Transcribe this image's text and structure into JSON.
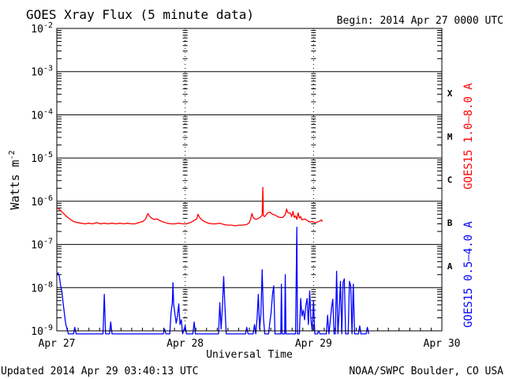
{
  "chart_data": {
    "type": "line",
    "title": "GOES Xray Flux (5 minute data)",
    "begin_label": "Begin:  2014 Apr 27 0000 UTC",
    "ylabel_main": "Watts m",
    "ylabel_sup": "-2",
    "xlabel": "Universal Time",
    "y_scale": "log",
    "ylim": [
      1e-09,
      0.01
    ],
    "y_ticks": [
      {
        "exp": "-2",
        "value": 0.01
      },
      {
        "exp": "-3",
        "value": 0.001
      },
      {
        "exp": "-4",
        "value": 0.0001
      },
      {
        "exp": "-5",
        "value": 1e-05
      },
      {
        "exp": "-6",
        "value": 1e-06
      },
      {
        "exp": "-7",
        "value": 1e-07
      },
      {
        "exp": "-8",
        "value": 1e-08
      },
      {
        "exp": "-9",
        "value": 1e-09
      }
    ],
    "x_unit": "days since Apr 27 0000 UTC",
    "xlim": [
      0,
      3
    ],
    "x_ticks": [
      {
        "label": "Apr 27",
        "value": 0
      },
      {
        "label": "Apr 28",
        "value": 1
      },
      {
        "label": "Apr 29",
        "value": 2
      },
      {
        "label": "Apr 30",
        "value": 3
      }
    ],
    "flare_classes": [
      {
        "label": "X",
        "center": 0.000316
      },
      {
        "label": "M",
        "center": 3.16e-05
      },
      {
        "label": "C",
        "center": 3.16e-06
      },
      {
        "label": "B",
        "center": 3.16e-07
      },
      {
        "label": "A",
        "center": 3.16e-08
      }
    ],
    "grid": true,
    "series": [
      {
        "name": "GOES15 1.0–8.0 A",
        "color": "#ff0000",
        "points": [
          [
            0.0,
            7e-07
          ],
          [
            0.01,
            6.8e-07
          ],
          [
            0.02,
            6.5e-07
          ],
          [
            0.03,
            6e-07
          ],
          [
            0.05,
            5.3e-07
          ],
          [
            0.07,
            4.6e-07
          ],
          [
            0.09,
            4.1e-07
          ],
          [
            0.11,
            3.7e-07
          ],
          [
            0.13,
            3.4e-07
          ],
          [
            0.16,
            3.2e-07
          ],
          [
            0.19,
            3.1e-07
          ],
          [
            0.22,
            3e-07
          ],
          [
            0.25,
            3.1e-07
          ],
          [
            0.28,
            3e-07
          ],
          [
            0.31,
            3.2e-07
          ],
          [
            0.34,
            3e-07
          ],
          [
            0.37,
            3.1e-07
          ],
          [
            0.4,
            3e-07
          ],
          [
            0.43,
            3.1e-07
          ],
          [
            0.46,
            3e-07
          ],
          [
            0.49,
            3.1e-07
          ],
          [
            0.52,
            3e-07
          ],
          [
            0.55,
            3.1e-07
          ],
          [
            0.58,
            3e-07
          ],
          [
            0.61,
            3e-07
          ],
          [
            0.64,
            3.2e-07
          ],
          [
            0.67,
            3.4e-07
          ],
          [
            0.69,
            3.8e-07
          ],
          [
            0.71,
            5.2e-07
          ],
          [
            0.72,
            4.6e-07
          ],
          [
            0.74,
            4e-07
          ],
          [
            0.76,
            3.8e-07
          ],
          [
            0.78,
            3.9e-07
          ],
          [
            0.8,
            3.6e-07
          ],
          [
            0.83,
            3.3e-07
          ],
          [
            0.86,
            3.1e-07
          ],
          [
            0.89,
            3e-07
          ],
          [
            0.92,
            3e-07
          ],
          [
            0.95,
            3.1e-07
          ],
          [
            0.98,
            3e-07
          ],
          [
            1.01,
            3e-07
          ],
          [
            1.04,
            3.2e-07
          ],
          [
            1.07,
            3.6e-07
          ],
          [
            1.09,
            3.9e-07
          ],
          [
            1.1,
            5e-07
          ],
          [
            1.11,
            4.3e-07
          ],
          [
            1.13,
            3.7e-07
          ],
          [
            1.15,
            3.4e-07
          ],
          [
            1.18,
            3.1e-07
          ],
          [
            1.21,
            3e-07
          ],
          [
            1.24,
            3e-07
          ],
          [
            1.27,
            3.1e-07
          ],
          [
            1.3,
            2.9e-07
          ],
          [
            1.33,
            2.8e-07
          ],
          [
            1.36,
            2.8e-07
          ],
          [
            1.39,
            2.7e-07
          ],
          [
            1.42,
            2.8e-07
          ],
          [
            1.45,
            2.8e-07
          ],
          [
            1.48,
            2.9e-07
          ],
          [
            1.5,
            3.2e-07
          ],
          [
            1.51,
            3.8e-07
          ],
          [
            1.52,
            5.2e-07
          ],
          [
            1.53,
            4.2e-07
          ],
          [
            1.55,
            3.8e-07
          ],
          [
            1.57,
            4e-07
          ],
          [
            1.59,
            4.4e-07
          ],
          [
            1.6,
            4.8e-07
          ],
          [
            1.605,
            2.1e-06
          ],
          [
            1.61,
            4.6e-07
          ],
          [
            1.62,
            4.4e-07
          ],
          [
            1.64,
            5.3e-07
          ],
          [
            1.66,
            5.6e-07
          ],
          [
            1.68,
            5e-07
          ],
          [
            1.7,
            4.8e-07
          ],
          [
            1.72,
            4.4e-07
          ],
          [
            1.74,
            4.2e-07
          ],
          [
            1.76,
            4.2e-07
          ],
          [
            1.78,
            4.9e-07
          ],
          [
            1.79,
            6.6e-07
          ],
          [
            1.8,
            5.4e-07
          ],
          [
            1.82,
            5.3e-07
          ],
          [
            1.83,
            4.4e-07
          ],
          [
            1.84,
            5.8e-07
          ],
          [
            1.85,
            4.2e-07
          ],
          [
            1.86,
            4.6e-07
          ],
          [
            1.87,
            3.8e-07
          ],
          [
            1.88,
            5.4e-07
          ],
          [
            1.89,
            4.1e-07
          ],
          [
            1.9,
            4.4e-07
          ],
          [
            1.91,
            3.7e-07
          ],
          [
            1.93,
            3.9e-07
          ],
          [
            1.95,
            3.6e-07
          ],
          [
            1.97,
            3.3e-07
          ],
          [
            1.99,
            3.4e-07
          ],
          [
            2.01,
            3.2e-07
          ],
          [
            2.03,
            3.3e-07
          ],
          [
            2.05,
            3.5e-07
          ],
          [
            2.06,
            3.7e-07
          ],
          [
            2.07,
            3.4e-07
          ]
        ]
      },
      {
        "name": "GOES15 0.5–4.0 A",
        "color": "#0000ff",
        "points": [
          [
            0.0,
            1.9e-08
          ],
          [
            0.01,
            2.2e-08
          ],
          [
            0.02,
            1.8e-08
          ],
          [
            0.03,
            1.1e-08
          ],
          [
            0.04,
            8e-09
          ],
          [
            0.05,
            4.2e-09
          ],
          [
            0.06,
            2.4e-09
          ],
          [
            0.07,
            1.4e-09
          ],
          [
            0.08,
            1.1e-09
          ],
          [
            0.09,
            8.5e-10
          ],
          [
            0.13,
            8.5e-10
          ],
          [
            0.14,
            1.2e-09
          ],
          [
            0.15,
            8.5e-10
          ],
          [
            0.36,
            8.5e-10
          ],
          [
            0.37,
            7e-09
          ],
          [
            0.38,
            8.5e-10
          ],
          [
            0.41,
            8.5e-10
          ],
          [
            0.42,
            1.6e-09
          ],
          [
            0.43,
            8.5e-10
          ],
          [
            0.83,
            8.5e-10
          ],
          [
            0.84,
            1.1e-09
          ],
          [
            0.85,
            8.5e-10
          ],
          [
            0.88,
            8.5e-10
          ],
          [
            0.89,
            2.6e-09
          ],
          [
            0.9,
            4.5e-09
          ],
          [
            0.905,
            1.3e-08
          ],
          [
            0.91,
            4.2e-09
          ],
          [
            0.92,
            2.5e-09
          ],
          [
            0.93,
            1.5e-09
          ],
          [
            0.94,
            2.2e-09
          ],
          [
            0.95,
            4.2e-09
          ],
          [
            0.96,
            1.4e-09
          ],
          [
            0.97,
            1.8e-09
          ],
          [
            0.98,
            8.5e-10
          ],
          [
            1.0,
            1.3e-09
          ],
          [
            1.01,
            8.5e-10
          ],
          [
            1.06,
            8.5e-10
          ],
          [
            1.07,
            1.6e-09
          ],
          [
            1.08,
            8.5e-10
          ],
          [
            1.26,
            8.5e-10
          ],
          [
            1.27,
            4.5e-09
          ],
          [
            1.28,
            1.1e-09
          ],
          [
            1.29,
            3.5e-09
          ],
          [
            1.3,
            1.8e-08
          ],
          [
            1.31,
            3.6e-09
          ],
          [
            1.32,
            8.5e-10
          ],
          [
            1.47,
            8.5e-10
          ],
          [
            1.48,
            1.2e-09
          ],
          [
            1.49,
            8.5e-10
          ],
          [
            1.53,
            8.5e-10
          ],
          [
            1.54,
            1.4e-09
          ],
          [
            1.55,
            8.5e-10
          ],
          [
            1.56,
            1.9e-09
          ],
          [
            1.57,
            7e-09
          ],
          [
            1.58,
            1.1e-09
          ],
          [
            1.59,
            2.4e-09
          ],
          [
            1.6,
            2.6e-08
          ],
          [
            1.61,
            2e-09
          ],
          [
            1.62,
            8.5e-10
          ],
          [
            1.65,
            8.5e-10
          ],
          [
            1.66,
            1.6e-09
          ],
          [
            1.67,
            2.7e-09
          ],
          [
            1.68,
            6.8e-09
          ],
          [
            1.69,
            1.1e-08
          ],
          [
            1.7,
            8.5e-10
          ],
          [
            1.745,
            8.5e-10
          ],
          [
            1.75,
            1.2e-08
          ],
          [
            1.755,
            8.5e-10
          ],
          [
            1.775,
            8.5e-10
          ],
          [
            1.78,
            2e-08
          ],
          [
            1.785,
            8.5e-10
          ],
          [
            1.86,
            8.5e-10
          ],
          [
            1.87,
            2.5e-07
          ],
          [
            1.875,
            8.5e-10
          ],
          [
            1.89,
            8.5e-10
          ],
          [
            1.9,
            5.6e-09
          ],
          [
            1.91,
            2.2e-09
          ],
          [
            1.92,
            3e-09
          ],
          [
            1.93,
            1.8e-09
          ],
          [
            1.94,
            3.8e-09
          ],
          [
            1.95,
            5.6e-09
          ],
          [
            1.96,
            1.4e-09
          ],
          [
            1.97,
            8.4e-09
          ],
          [
            1.98,
            1.8e-09
          ],
          [
            1.99,
            1e-09
          ],
          [
            2.0,
            5e-09
          ],
          [
            2.01,
            8.5e-10
          ],
          [
            2.03,
            8.5e-10
          ],
          [
            2.04,
            1e-09
          ],
          [
            2.05,
            8.5e-10
          ],
          [
            2.1,
            8.5e-10
          ],
          [
            2.11,
            2.3e-09
          ],
          [
            2.12,
            8.5e-10
          ],
          [
            2.13,
            1.6e-09
          ],
          [
            2.14,
            3.4e-09
          ],
          [
            2.15,
            5.4e-09
          ],
          [
            2.16,
            8.5e-10
          ],
          [
            2.17,
            8.5e-10
          ],
          [
            2.18,
            2.4e-08
          ],
          [
            2.19,
            8.5e-10
          ],
          [
            2.2,
            3e-09
          ],
          [
            2.21,
            1.4e-08
          ],
          [
            2.22,
            8.5e-10
          ],
          [
            2.23,
            1.3e-08
          ],
          [
            2.24,
            1.6e-08
          ],
          [
            2.25,
            8.5e-10
          ],
          [
            2.27,
            8.5e-10
          ],
          [
            2.28,
            1.4e-08
          ],
          [
            2.29,
            1.1e-08
          ],
          [
            2.3,
            8.5e-10
          ],
          [
            2.31,
            1.2e-08
          ],
          [
            2.32,
            8.5e-10
          ],
          [
            2.35,
            8.5e-10
          ],
          [
            2.36,
            1.3e-09
          ],
          [
            2.37,
            8.5e-10
          ],
          [
            2.41,
            8.5e-10
          ],
          [
            2.42,
            1.2e-09
          ],
          [
            2.43,
            8.5e-10
          ]
        ]
      }
    ]
  },
  "footer": {
    "updated": "Updated 2014 Apr 29 03:40:13 UTC",
    "credit": "NOAA/SWPC Boulder, CO USA"
  }
}
